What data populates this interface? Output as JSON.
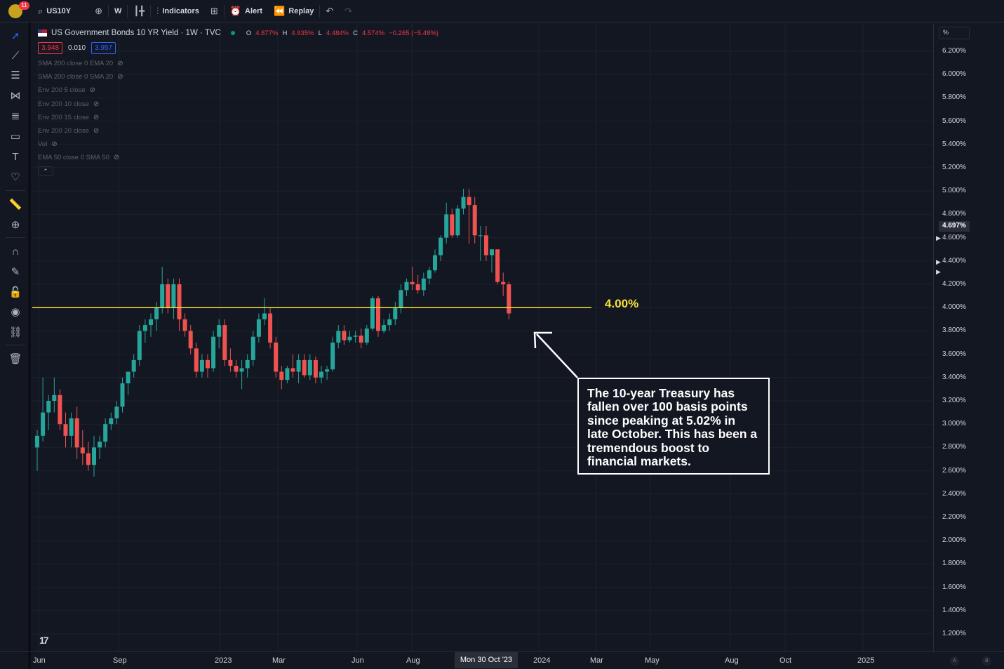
{
  "topbar": {
    "badge": "11",
    "symbol": "US10Y",
    "interval": "W",
    "indicators_label": "Indicators",
    "alert_label": "Alert",
    "replay_label": "Replay"
  },
  "legend": {
    "title": "US Government Bonds 10 YR Yield · 1W · TVC",
    "o_key": "O",
    "o_val": "4.877%",
    "h_key": "H",
    "h_val": "4.935%",
    "l_key": "L",
    "l_val": "4.484%",
    "c_key": "C",
    "c_val": "4.574%",
    "change": "−0.265 (−5.48%)",
    "bid": "3.948",
    "spread": "0.010",
    "ask": "3.957",
    "indicators": [
      "SMA 200 close 0 EMA 20",
      "SMA 200 close 0 SMA 20",
      "Env 200 5 close",
      "Env 200 10 close",
      "Env 200 15 close",
      "Env 200 20 close",
      "Vol",
      "EMA 50 close 0 SMA 50"
    ]
  },
  "yaxis": {
    "unit": "%",
    "current_price": "4.697%",
    "ticks": [
      "6.200%",
      "6.000%",
      "5.800%",
      "5.600%",
      "5.400%",
      "5.200%",
      "5.000%",
      "4.800%",
      "4.600%",
      "4.400%",
      "4.200%",
      "4.000%",
      "3.800%",
      "3.600%",
      "3.400%",
      "3.200%",
      "3.000%",
      "2.800%",
      "2.600%",
      "2.400%",
      "2.200%",
      "2.000%",
      "1.800%",
      "1.600%",
      "1.400%",
      "1.200%"
    ]
  },
  "xaxis": {
    "ticks": [
      "Jun",
      "Sep",
      "2023",
      "Mar",
      "Jun",
      "Aug",
      "2024",
      "Mar",
      "May",
      "Aug",
      "Oct",
      "2025"
    ],
    "current_date": "Mon 30 Oct '23",
    "corner_a": "A",
    "corner_b": "B"
  },
  "annotation": {
    "line_label": "4.00%",
    "note": "The 10-year Treasury has fallen over 100 basis points since peaking at 5.02% in late October. This has been a tremendous boost to financial markets."
  },
  "colors": {
    "up": "#26a69a",
    "down": "#ef5350",
    "line": "#f7e03a",
    "bg": "#131722"
  },
  "chart_data": {
    "type": "candlestick",
    "title": "US Government Bonds 10 YR Yield · 1W · TVC",
    "ylabel": "%",
    "ylim": [
      1.1,
      6.3
    ],
    "horizontal_line": 4.0,
    "candles": [
      [
        2.8,
        2.95,
        2.6,
        2.9
      ],
      [
        2.9,
        3.4,
        2.85,
        3.1
      ],
      [
        3.1,
        3.25,
        2.95,
        3.2
      ],
      [
        3.2,
        3.4,
        3.1,
        3.25
      ],
      [
        3.25,
        3.3,
        2.95,
        3.0
      ],
      [
        3.0,
        3.1,
        2.8,
        2.9
      ],
      [
        2.9,
        3.1,
        2.8,
        3.05
      ],
      [
        3.05,
        3.15,
        2.7,
        2.8
      ],
      [
        2.8,
        2.95,
        2.65,
        2.75
      ],
      [
        2.75,
        2.85,
        2.6,
        2.65
      ],
      [
        2.65,
        2.9,
        2.55,
        2.8
      ],
      [
        2.8,
        2.9,
        2.7,
        2.85
      ],
      [
        2.85,
        3.05,
        2.8,
        3.0
      ],
      [
        3.0,
        3.1,
        2.95,
        3.05
      ],
      [
        3.05,
        3.2,
        3.0,
        3.15
      ],
      [
        3.15,
        3.4,
        3.1,
        3.35
      ],
      [
        3.35,
        3.45,
        3.25,
        3.45
      ],
      [
        3.45,
        3.6,
        3.4,
        3.55
      ],
      [
        3.55,
        3.85,
        3.5,
        3.8
      ],
      [
        3.8,
        3.9,
        3.7,
        3.85
      ],
      [
        3.85,
        3.95,
        3.75,
        3.9
      ],
      [
        3.9,
        4.05,
        3.8,
        4.0
      ],
      [
        4.0,
        4.35,
        3.95,
        4.2
      ],
      [
        4.2,
        4.25,
        3.95,
        4.0
      ],
      [
        4.0,
        4.25,
        3.9,
        4.2
      ],
      [
        4.2,
        4.25,
        3.8,
        3.9
      ],
      [
        3.9,
        3.95,
        3.75,
        3.8
      ],
      [
        3.8,
        3.85,
        3.6,
        3.65
      ],
      [
        3.65,
        3.7,
        3.4,
        3.45
      ],
      [
        3.45,
        3.6,
        3.4,
        3.55
      ],
      [
        3.55,
        3.6,
        3.4,
        3.48
      ],
      [
        3.48,
        3.8,
        3.45,
        3.75
      ],
      [
        3.75,
        3.9,
        3.65,
        3.85
      ],
      [
        3.85,
        3.9,
        3.5,
        3.55
      ],
      [
        3.55,
        3.65,
        3.45,
        3.5
      ],
      [
        3.5,
        3.55,
        3.4,
        3.45
      ],
      [
        3.45,
        3.55,
        3.3,
        3.48
      ],
      [
        3.48,
        3.6,
        3.4,
        3.55
      ],
      [
        3.55,
        3.8,
        3.5,
        3.75
      ],
      [
        3.75,
        3.95,
        3.7,
        3.9
      ],
      [
        3.9,
        4.08,
        3.85,
        3.95
      ],
      [
        3.95,
        4.0,
        3.65,
        3.7
      ],
      [
        3.7,
        3.75,
        3.4,
        3.45
      ],
      [
        3.45,
        3.5,
        3.3,
        3.38
      ],
      [
        3.38,
        3.5,
        3.35,
        3.48
      ],
      [
        3.48,
        3.6,
        3.4,
        3.45
      ],
      [
        3.45,
        3.6,
        3.35,
        3.55
      ],
      [
        3.55,
        3.6,
        3.4,
        3.42
      ],
      [
        3.42,
        3.6,
        3.38,
        3.55
      ],
      [
        3.55,
        3.58,
        3.35,
        3.4
      ],
      [
        3.4,
        3.5,
        3.35,
        3.45
      ],
      [
        3.45,
        3.5,
        3.38,
        3.47
      ],
      [
        3.47,
        3.75,
        3.45,
        3.7
      ],
      [
        3.7,
        3.85,
        3.65,
        3.8
      ],
      [
        3.8,
        3.85,
        3.68,
        3.72
      ],
      [
        3.72,
        3.8,
        3.7,
        3.75
      ],
      [
        3.75,
        3.8,
        3.7,
        3.76
      ],
      [
        3.76,
        3.82,
        3.65,
        3.7
      ],
      [
        3.7,
        3.85,
        3.68,
        3.82
      ],
      [
        3.82,
        4.1,
        3.8,
        4.08
      ],
      [
        4.08,
        4.1,
        3.75,
        3.8
      ],
      [
        3.8,
        3.9,
        3.78,
        3.85
      ],
      [
        3.85,
        3.95,
        3.8,
        3.9
      ],
      [
        3.9,
        4.05,
        3.85,
        4.0
      ],
      [
        4.0,
        4.2,
        3.95,
        4.15
      ],
      [
        4.15,
        4.25,
        4.1,
        4.22
      ],
      [
        4.22,
        4.35,
        4.15,
        4.2
      ],
      [
        4.2,
        4.28,
        4.12,
        4.15
      ],
      [
        4.15,
        4.3,
        4.1,
        4.25
      ],
      [
        4.25,
        4.35,
        4.2,
        4.32
      ],
      [
        4.32,
        4.5,
        4.3,
        4.45
      ],
      [
        4.45,
        4.62,
        4.4,
        4.6
      ],
      [
        4.6,
        4.9,
        4.55,
        4.8
      ],
      [
        4.8,
        4.85,
        4.6,
        4.62
      ],
      [
        4.62,
        4.88,
        4.6,
        4.85
      ],
      [
        4.85,
        5.02,
        4.8,
        4.95
      ],
      [
        4.95,
        5.02,
        4.55,
        4.88
      ],
      [
        4.88,
        4.95,
        4.55,
        4.62
      ],
      [
        4.62,
        4.7,
        4.4,
        4.62
      ],
      [
        4.62,
        4.7,
        4.4,
        4.45
      ],
      [
        4.45,
        4.5,
        4.3,
        4.5
      ],
      [
        4.5,
        4.5,
        4.2,
        4.22
      ],
      [
        4.22,
        4.3,
        4.1,
        4.2
      ],
      [
        4.2,
        4.22,
        3.9,
        3.95
      ]
    ]
  }
}
